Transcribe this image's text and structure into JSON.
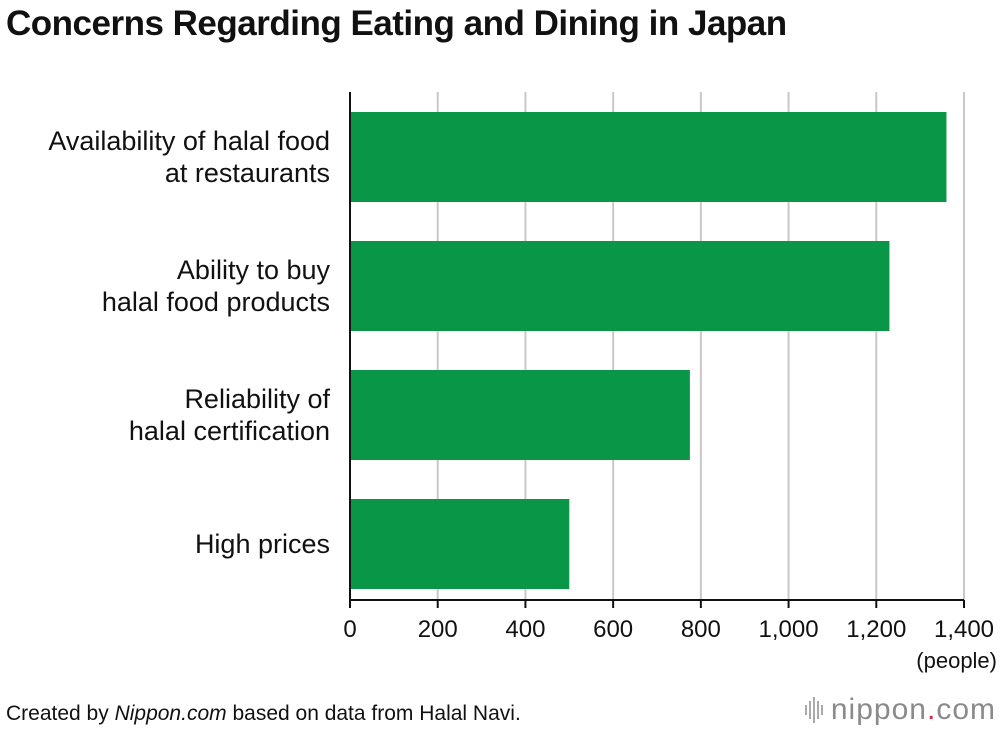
{
  "title": "Concerns Regarding Eating and Dining in Japan",
  "footer": {
    "prefix": "Created by ",
    "source_italic": "Nippon.com",
    "suffix": " based on data from Halal Navi."
  },
  "logo": {
    "name": "nippon",
    "dot": ".",
    "tld": "com"
  },
  "colors": {
    "bar": "#0a9647",
    "grid": "#c8c8c8",
    "axis": "#111111"
  },
  "chart_data": {
    "type": "bar",
    "orientation": "horizontal",
    "title": "Concerns Regarding Eating and Dining in Japan",
    "categories": [
      [
        "Availability of halal food",
        "at restaurants"
      ],
      [
        "Ability to buy",
        "halal food products"
      ],
      [
        "Reliability of",
        "halal certification"
      ],
      [
        "High prices"
      ]
    ],
    "values": [
      1360,
      1230,
      775,
      500
    ],
    "xlim": [
      0,
      1400
    ],
    "ticks": [
      0,
      200,
      400,
      600,
      800,
      1000,
      1200,
      1400
    ],
    "tick_labels": [
      "0",
      "200",
      "400",
      "600",
      "800",
      "1,000",
      "1,200",
      "1,400"
    ],
    "unit": "(people)",
    "grid": true,
    "legend": "none"
  }
}
